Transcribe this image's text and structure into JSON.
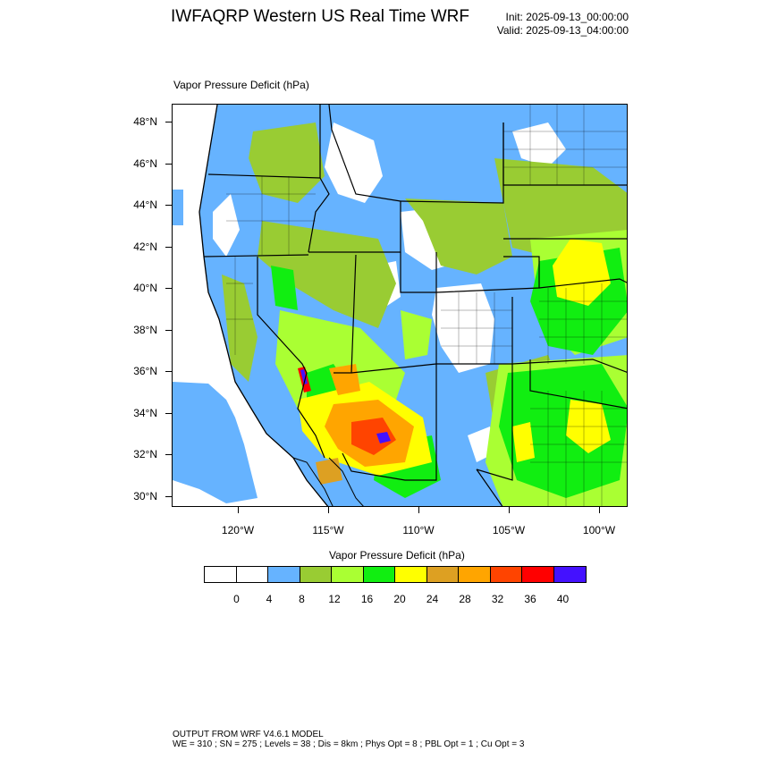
{
  "header": {
    "title": "IWFAQRP Western US Real Time WRF",
    "init": "Init: 2025-09-13_00:00:00",
    "valid": "Valid: 2025-09-13_04:00:00"
  },
  "map": {
    "field_label": "Vapor Pressure Deficit   (hPa)",
    "lat_labels": [
      "48°N",
      "46°N",
      "44°N",
      "42°N",
      "40°N",
      "38°N",
      "36°N",
      "34°N",
      "32°N",
      "30°N"
    ],
    "lon_labels": [
      "120°W",
      "115°W",
      "110°W",
      "105°W",
      "100°W"
    ]
  },
  "colorbar": {
    "title": "Vapor Pressure Deficit  (hPa)",
    "colors": [
      "#ffffff",
      "#ffffff",
      "#66b3ff",
      "#99cc33",
      "#aaff33",
      "#11ee11",
      "#ffff00",
      "#dda022",
      "#ffa500",
      "#ff4400",
      "#ff0000",
      "#4411ff"
    ],
    "labels": [
      "0",
      "4",
      "8",
      "12",
      "16",
      "20",
      "24",
      "28",
      "32",
      "36",
      "40"
    ]
  },
  "footer": {
    "line1": "OUTPUT FROM WRF V4.6.1 MODEL",
    "line2": "WE = 310 ; SN = 275 ; Levels = 38 ; Dis = 8km ; Phys Opt = 8 ; PBL Opt = 1 ; Cu Opt = 3"
  }
}
